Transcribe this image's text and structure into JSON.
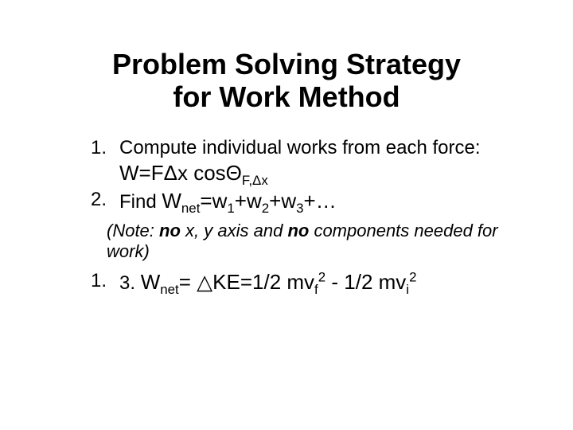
{
  "background_color": "#ffffff",
  "text_color": "#000000",
  "title": {
    "line1": "Problem Solving Strategy",
    "line2": "for Work Method",
    "fontsize": 36,
    "weight": "bold",
    "align": "center"
  },
  "list": {
    "fontsize": 24,
    "items": [
      {
        "marker": "1.",
        "text_pre": "Compute individual works from each force: ",
        "formula_parts": {
          "W": "W=F",
          "delta": "Δ",
          "x": "x cos",
          "theta": "Θ",
          "sub": "F,Δx"
        }
      },
      {
        "marker": "2.",
        "text_pre": "Find ",
        "formula_parts": {
          "W": "W",
          "net": "net",
          "eq": "=w",
          "s1": "1",
          "p1": "+w",
          "s2": "2",
          "p2": "+w",
          "s3": "3",
          "tail": "+…"
        }
      }
    ]
  },
  "note": {
    "pre": "(Note: ",
    "no1": "no",
    "mid1": " x, y axis and ",
    "no2": "no",
    "mid2": " components needed for work)",
    "fontsize": 22
  },
  "item3": {
    "marker": "1.",
    "inline_marker": "3.",
    "W": "W",
    "net": "net",
    "eq": "= ",
    "tri": "△",
    "ke": "KE=1/2 mv",
    "f": "f",
    "sq1": "2",
    "minus": " - 1/2 mv",
    "i": "i",
    "sq2": "2"
  }
}
